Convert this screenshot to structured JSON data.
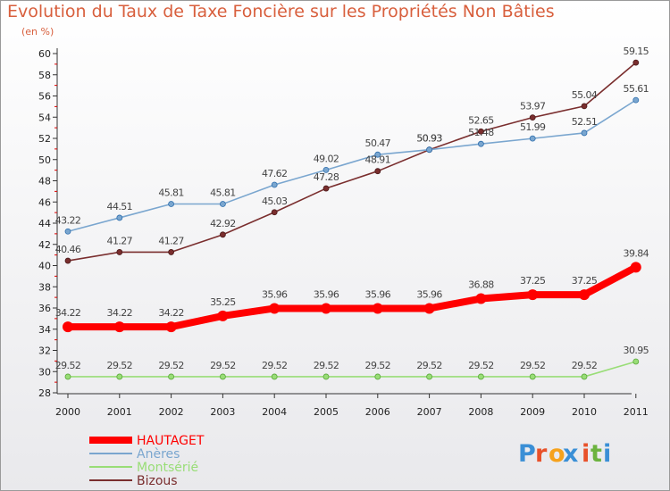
{
  "chart_data": {
    "type": "line",
    "title": "Evolution du Taux de Taxe Foncière sur les Propriétés Non Bâties",
    "subtitle": "(en %)",
    "x": [
      "2000",
      "2001",
      "2002",
      "2003",
      "2004",
      "2005",
      "2006",
      "2007",
      "2008",
      "2009",
      "2010",
      "2011"
    ],
    "yticks": [
      "28",
      "30",
      "32",
      "34",
      "36",
      "38",
      "40",
      "42",
      "44",
      "46",
      "48",
      "50",
      "52",
      "54",
      "56",
      "58",
      "60"
    ],
    "ylim": [
      28,
      60
    ],
    "grid": false,
    "legend_position": "bottom-left",
    "series": [
      {
        "name": "HAUTAGET",
        "color": "#ff0000",
        "values": [
          34.22,
          34.22,
          34.22,
          35.25,
          35.96,
          35.96,
          35.96,
          35.96,
          36.88,
          37.25,
          37.25,
          39.84
        ],
        "labels": [
          "34.22",
          "34.22",
          "34.22",
          "35.25",
          "35.96",
          "35.96",
          "35.96",
          "35.96",
          "36.88",
          "37.25",
          "37.25",
          "39.84"
        ]
      },
      {
        "name": "Anères",
        "color": "#7aa6cf",
        "values": [
          43.22,
          44.51,
          45.81,
          45.81,
          47.62,
          49.02,
          50.47,
          50.93,
          51.48,
          51.99,
          52.51,
          55.61
        ],
        "labels": [
          "43.22",
          "44.51",
          "45.81",
          "45.81",
          "47.62",
          "49.02",
          "50.47",
          "50.93",
          "51.48",
          "51.99",
          "52.51",
          "55.61"
        ]
      },
      {
        "name": "Montsérié",
        "color": "#99dd77",
        "values": [
          29.52,
          29.52,
          29.52,
          29.52,
          29.52,
          29.52,
          29.52,
          29.52,
          29.52,
          29.52,
          29.52,
          30.95
        ],
        "labels": [
          "29.52",
          "29.52",
          "29.52",
          "29.52",
          "29.52",
          "29.52",
          "29.52",
          "29.52",
          "29.52",
          "29.52",
          "29.52",
          "30.95"
        ]
      },
      {
        "name": "Bizous",
        "color": "#7a2e2e",
        "values": [
          40.46,
          41.27,
          41.27,
          42.92,
          45.03,
          47.28,
          48.91,
          50.93,
          52.65,
          53.97,
          55.04,
          59.15
        ],
        "labels": [
          "40.46",
          "41.27",
          "41.27",
          "42.92",
          "45.03",
          "47.28",
          "48.91",
          "50.93",
          "52.65",
          "53.97",
          "55.04",
          "59.15"
        ]
      }
    ]
  },
  "branding": {
    "logo_letters": [
      "P",
      "r",
      "o",
      "x",
      "i",
      "t",
      "i"
    ],
    "logo_colors": [
      "#3a8fd6",
      "#e8512a",
      "#f6a21c",
      "#3a8fd6",
      "#e8512a",
      "#6cb33f",
      "#3a8fd6"
    ]
  }
}
